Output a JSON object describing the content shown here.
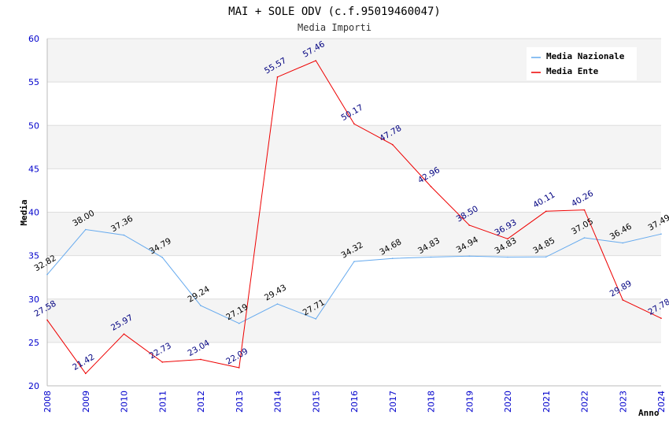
{
  "chart_data": {
    "type": "line",
    "title": "MAI + SOLE ODV (c.f.95019460047)",
    "subtitle": "Media Importi",
    "xlabel": "Anno",
    "ylabel": "Media",
    "ylim": [
      20,
      60
    ],
    "y_ticks": [
      "20",
      "25",
      "30",
      "35",
      "40",
      "45",
      "50",
      "55",
      "60"
    ],
    "categories": [
      "2008",
      "2009",
      "2010",
      "2011",
      "2012",
      "2013",
      "2014",
      "2015",
      "2016",
      "2017",
      "2018",
      "2019",
      "2020",
      "2021",
      "2022",
      "2023",
      "2024"
    ],
    "grid": "horizontal alternating bands",
    "legend_position": "top-right",
    "series": [
      {
        "name": "Media Nazionale",
        "color": "#66aaee",
        "values": [
          32.82,
          38.0,
          37.36,
          34.79,
          29.24,
          27.19,
          29.43,
          27.71,
          34.32,
          34.68,
          34.83,
          34.94,
          34.83,
          34.85,
          37.05,
          36.46,
          37.49
        ],
        "labels": [
          "32.82",
          "38.00",
          "37.36",
          "34.79",
          "29.24",
          "27.19",
          "29.43",
          "27.71",
          "34.32",
          "34.68",
          "34.83",
          "34.94",
          "34.83",
          "34.85",
          "37.05",
          "36.46",
          "37.49"
        ]
      },
      {
        "name": "Media Ente",
        "color": "#ee0000",
        "values": [
          27.58,
          21.42,
          25.97,
          22.73,
          23.04,
          22.09,
          55.57,
          57.46,
          50.17,
          47.78,
          42.96,
          38.5,
          36.93,
          40.11,
          40.26,
          29.89,
          27.78
        ],
        "labels": [
          "27.58",
          "21.42",
          "25.97",
          "22.73",
          "23.04",
          "22.09",
          "55.57",
          "57.46",
          "50.17",
          "47.78",
          "42.96",
          "38.50",
          "36.93",
          "40.11",
          "40.26",
          "29.89",
          "27.78"
        ]
      }
    ]
  }
}
